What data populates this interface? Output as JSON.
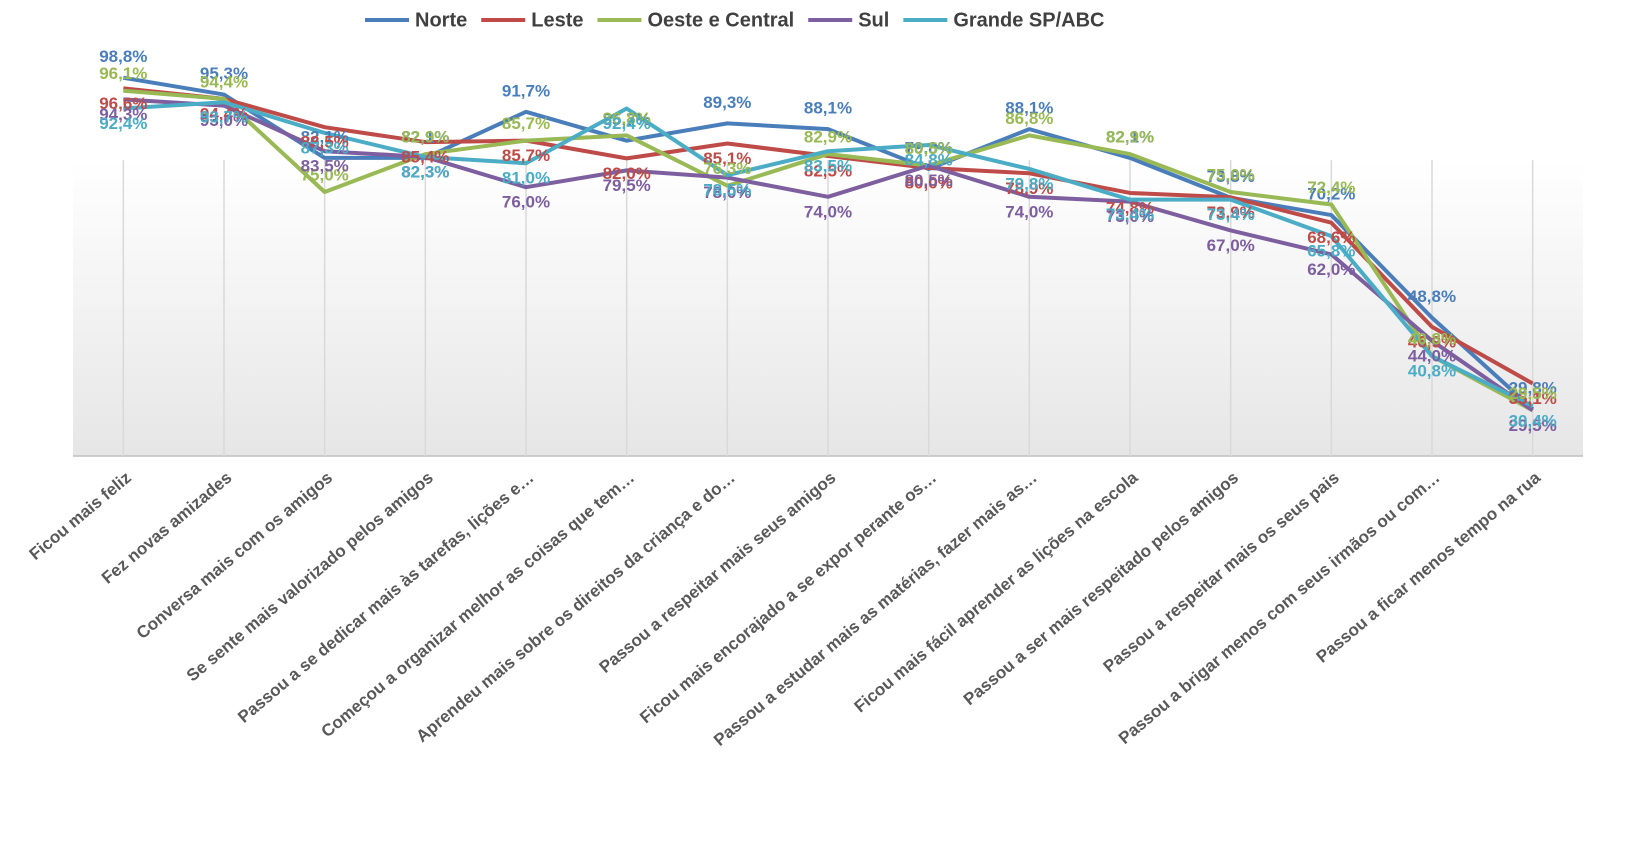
{
  "chart_data": {
    "type": "line",
    "categories": [
      "Ficou mais feliz",
      "Fez novas amizades",
      "Conversa mais  com os amigos",
      "Se sente mais valorizado pelos amigos",
      "Passou a se dedicar mais às tarefas, lições e…",
      "Começou a organizar melhor as coisas que tem…",
      "Aprendeu mais sobre os direitos da criança e do…",
      "Passou a respeitar mais seus amigos",
      "Ficou mais encorajado a se expor perante os…",
      "Passou a estudar mais as matérias, fazer mais as…",
      "Ficou mais fácil aprender as lições na escola",
      "Passou a ser mais respeitado pelos amigos",
      "Passou a respeitar mais os seus pais",
      "Passou a brigar menos com seus irmãos ou com…",
      "Passou a ficar menos tempo na rua"
    ],
    "series": [
      {
        "name": "Norte",
        "color": "#4a7ebb",
        "values": [
          98.8,
          95.3,
          82.1,
          82.1,
          91.7,
          85.7,
          89.3,
          88.1,
          79.8,
          88.1,
          82.1,
          73.8,
          70.2,
          48.8,
          29.8
        ],
        "value_labels": [
          "98,8%",
          "95,3%",
          "82,1%",
          "82,1%",
          "91,7%",
          "85,7%",
          "89,3%",
          "88,1%",
          "79,8%",
          "88,1%",
          "82,1%",
          "73,8%",
          "70,2%",
          "48,8%",
          "29,8%"
        ]
      },
      {
        "name": "Leste",
        "color": "#be4b48",
        "values": [
          96.6,
          94.4,
          88.5,
          85.4,
          85.7,
          82.0,
          85.1,
          82.5,
          80.0,
          78.9,
          74.8,
          73.9,
          68.6,
          46.9,
          35.1
        ],
        "value_labels": [
          "96,6%",
          "94,4%",
          "88,5%",
          "85,4%",
          "85,7%",
          "82,0%",
          "85,1%",
          "82,5%",
          "80,0%",
          "78,9%",
          "74,8%",
          "73,9%",
          "68,6%",
          "46,9%",
          "35,1%"
        ]
      },
      {
        "name": "Oeste e Central",
        "color": "#98b954",
        "values": [
          96.1,
          94.4,
          75.0,
          82.9,
          85.7,
          86.8,
          76.3,
          82.9,
          80.5,
          86.8,
          82.9,
          75.0,
          72.4,
          40.8,
          29.5
        ],
        "value_labels": [
          "96,1%",
          "94,4%",
          "75,0%",
          "82,9%",
          "85,7%",
          "86,8%",
          "76,3%",
          "82,9%",
          "80,5%",
          "86,8%",
          "82,9%",
          "75,0%",
          "72,4%",
          "40,8%",
          "29,5%"
        ]
      },
      {
        "name": "Sul",
        "color": "#7d5fa0",
        "values": [
          94.3,
          93.0,
          83.5,
          82.3,
          76.0,
          79.5,
          78.0,
          74.0,
          80.5,
          74.0,
          73.0,
          67.0,
          62.0,
          44.0,
          29.5
        ],
        "value_labels": [
          "94,3%",
          "93,0%",
          "83,5%",
          "82,3%",
          "76,0%",
          "79,5%",
          "78,0%",
          "74,0%",
          "80,5%",
          "74,0%",
          "73,0%",
          "67,0%",
          "62,0%",
          "44,0%",
          "29,5%"
        ]
      },
      {
        "name": "Grande SP/ABC",
        "color": "#4bacc6",
        "values": [
          92.4,
          93.7,
          87.3,
          82.3,
          81.0,
          92.4,
          78.5,
          83.5,
          84.8,
          79.8,
          73.4,
          73.4,
          65.8,
          40.8,
          30.4
        ],
        "value_labels": [
          "92,4%",
          "93,7%",
          "87,3%",
          "82,3%",
          "81,0%",
          "92,4%",
          "78,5%",
          "83,5%",
          "84,8%",
          "79,8%",
          "73,4%",
          "73,4%",
          "65,8%",
          "40,8%",
          "30,4%"
        ]
      }
    ],
    "ylim": [
      20,
      115
    ]
  }
}
